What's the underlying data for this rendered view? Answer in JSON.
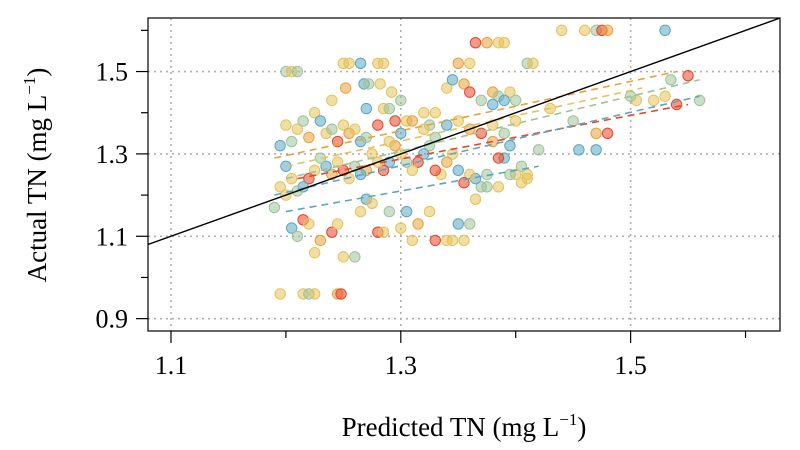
{
  "chart_data": {
    "type": "scatter",
    "title": "",
    "xlabel": "Predicted TN (mg L",
    "ylabel": "Actual TN (mg L",
    "unit_superscript": "−1",
    "unit_close": ")",
    "xlim": [
      1.08,
      1.63
    ],
    "ylim": [
      0.87,
      1.63
    ],
    "xticks": [
      1.1,
      1.3,
      1.5
    ],
    "xtick_labels": [
      "1.1",
      "1.3",
      "1.5"
    ],
    "xticks_minor": [
      1.2,
      1.4,
      1.6
    ],
    "yticks": [
      0.9,
      1.1,
      1.3,
      1.5
    ],
    "ytick_labels": [
      "0.9",
      "1.1",
      "1.3",
      "1.5"
    ],
    "yticks_minor": [
      1.0,
      1.2,
      1.4,
      1.6
    ],
    "grid": true,
    "legend": "none",
    "colors": {
      "blue": "#5aa7c4",
      "sage": "#9fc29a",
      "yellow": "#e5c25a",
      "orange": "#e8a23a",
      "red": "#e8462a",
      "identity_line": "#000000",
      "grid": "#b0b0b0"
    },
    "identity_line": {
      "x": [
        1.08,
        1.63
      ],
      "y": [
        1.08,
        1.63
      ]
    },
    "fit_lines": [
      {
        "color": "orange",
        "x": [
          1.19,
          1.54
        ],
        "y": [
          1.29,
          1.5
        ]
      },
      {
        "color": "yellow",
        "x": [
          1.2,
          1.51
        ],
        "y": [
          1.27,
          1.46
        ]
      },
      {
        "color": "sage",
        "x": [
          1.2,
          1.56
        ],
        "y": [
          1.24,
          1.48
        ]
      },
      {
        "color": "red",
        "x": [
          1.21,
          1.55
        ],
        "y": [
          1.24,
          1.42
        ]
      },
      {
        "color": "blue",
        "x": [
          1.19,
          1.56
        ],
        "y": [
          1.2,
          1.44
        ]
      },
      {
        "color": "blue",
        "x": [
          1.2,
          1.42
        ],
        "y": [
          1.16,
          1.27
        ]
      }
    ],
    "points": [
      {
        "x": 1.2,
        "y": 1.5,
        "c": "sage"
      },
      {
        "x": 1.205,
        "y": 1.5,
        "c": "yellow"
      },
      {
        "x": 1.21,
        "y": 1.5,
        "c": "sage"
      },
      {
        "x": 1.24,
        "y": 1.43,
        "c": "yellow"
      },
      {
        "x": 1.25,
        "y": 1.52,
        "c": "yellow"
      },
      {
        "x": 1.252,
        "y": 1.46,
        "c": "orange"
      },
      {
        "x": 1.255,
        "y": 1.52,
        "c": "yellow"
      },
      {
        "x": 1.265,
        "y": 1.52,
        "c": "blue"
      },
      {
        "x": 1.268,
        "y": 1.47,
        "c": "blue"
      },
      {
        "x": 1.272,
        "y": 1.47,
        "c": "sage"
      },
      {
        "x": 1.28,
        "y": 1.52,
        "c": "yellow"
      },
      {
        "x": 1.285,
        "y": 1.52,
        "c": "yellow"
      },
      {
        "x": 1.282,
        "y": 1.47,
        "c": "yellow"
      },
      {
        "x": 1.27,
        "y": 1.41,
        "c": "blue"
      },
      {
        "x": 1.285,
        "y": 1.41,
        "c": "yellow"
      },
      {
        "x": 1.29,
        "y": 1.41,
        "c": "sage"
      },
      {
        "x": 1.292,
        "y": 1.45,
        "c": "yellow"
      },
      {
        "x": 1.3,
        "y": 1.43,
        "c": "sage"
      },
      {
        "x": 1.295,
        "y": 1.38,
        "c": "red"
      },
      {
        "x": 1.305,
        "y": 1.38,
        "c": "yellow"
      },
      {
        "x": 1.32,
        "y": 1.4,
        "c": "yellow"
      },
      {
        "x": 1.33,
        "y": 1.4,
        "c": "yellow"
      },
      {
        "x": 1.325,
        "y": 1.37,
        "c": "sage"
      },
      {
        "x": 1.34,
        "y": 1.46,
        "c": "yellow"
      },
      {
        "x": 1.345,
        "y": 1.48,
        "c": "blue"
      },
      {
        "x": 1.35,
        "y": 1.52,
        "c": "orange"
      },
      {
        "x": 1.36,
        "y": 1.52,
        "c": "yellow"
      },
      {
        "x": 1.355,
        "y": 1.47,
        "c": "orange"
      },
      {
        "x": 1.36,
        "y": 1.45,
        "c": "red"
      },
      {
        "x": 1.365,
        "y": 1.57,
        "c": "red"
      },
      {
        "x": 1.375,
        "y": 1.57,
        "c": "orange"
      },
      {
        "x": 1.385,
        "y": 1.57,
        "c": "yellow"
      },
      {
        "x": 1.39,
        "y": 1.57,
        "c": "yellow"
      },
      {
        "x": 1.37,
        "y": 1.43,
        "c": "sage"
      },
      {
        "x": 1.38,
        "y": 1.45,
        "c": "orange"
      },
      {
        "x": 1.385,
        "y": 1.44,
        "c": "sage"
      },
      {
        "x": 1.395,
        "y": 1.45,
        "c": "yellow"
      },
      {
        "x": 1.38,
        "y": 1.42,
        "c": "blue"
      },
      {
        "x": 1.39,
        "y": 1.43,
        "c": "blue"
      },
      {
        "x": 1.4,
        "y": 1.43,
        "c": "sage"
      },
      {
        "x": 1.41,
        "y": 1.52,
        "c": "sage"
      },
      {
        "x": 1.415,
        "y": 1.52,
        "c": "yellow"
      },
      {
        "x": 1.44,
        "y": 1.6,
        "c": "yellow"
      },
      {
        "x": 1.46,
        "y": 1.6,
        "c": "yellow"
      },
      {
        "x": 1.47,
        "y": 1.6,
        "c": "sage"
      },
      {
        "x": 1.475,
        "y": 1.6,
        "c": "red"
      },
      {
        "x": 1.48,
        "y": 1.6,
        "c": "orange"
      },
      {
        "x": 1.53,
        "y": 1.6,
        "c": "blue"
      },
      {
        "x": 1.47,
        "y": 1.35,
        "c": "orange"
      },
      {
        "x": 1.48,
        "y": 1.35,
        "c": "red"
      },
      {
        "x": 1.53,
        "y": 1.44,
        "c": "yellow"
      },
      {
        "x": 1.55,
        "y": 1.49,
        "c": "red"
      },
      {
        "x": 1.54,
        "y": 1.42,
        "c": "red"
      },
      {
        "x": 1.56,
        "y": 1.43,
        "c": "sage"
      },
      {
        "x": 1.535,
        "y": 1.48,
        "c": "sage"
      },
      {
        "x": 1.52,
        "y": 1.43,
        "c": "yellow"
      },
      {
        "x": 1.505,
        "y": 1.43,
        "c": "yellow"
      },
      {
        "x": 1.5,
        "y": 1.44,
        "c": "sage"
      },
      {
        "x": 1.455,
        "y": 1.31,
        "c": "blue"
      },
      {
        "x": 1.47,
        "y": 1.31,
        "c": "blue"
      },
      {
        "x": 1.43,
        "y": 1.41,
        "c": "yellow"
      },
      {
        "x": 1.45,
        "y": 1.38,
        "c": "sage"
      },
      {
        "x": 1.42,
        "y": 1.31,
        "c": "sage"
      },
      {
        "x": 1.41,
        "y": 1.25,
        "c": "yellow"
      },
      {
        "x": 1.405,
        "y": 1.27,
        "c": "sage"
      },
      {
        "x": 1.4,
        "y": 1.25,
        "c": "yellow"
      },
      {
        "x": 1.395,
        "y": 1.32,
        "c": "blue"
      },
      {
        "x": 1.39,
        "y": 1.29,
        "c": "blue"
      },
      {
        "x": 1.385,
        "y": 1.29,
        "c": "red"
      },
      {
        "x": 1.38,
        "y": 1.33,
        "c": "orange"
      },
      {
        "x": 1.375,
        "y": 1.25,
        "c": "sage"
      },
      {
        "x": 1.37,
        "y": 1.22,
        "c": "sage"
      },
      {
        "x": 1.365,
        "y": 1.24,
        "c": "blue"
      },
      {
        "x": 1.36,
        "y": 1.25,
        "c": "yellow"
      },
      {
        "x": 1.355,
        "y": 1.23,
        "c": "red"
      },
      {
        "x": 1.35,
        "y": 1.26,
        "c": "blue"
      },
      {
        "x": 1.345,
        "y": 1.3,
        "c": "yellow"
      },
      {
        "x": 1.34,
        "y": 1.28,
        "c": "orange"
      },
      {
        "x": 1.335,
        "y": 1.25,
        "c": "yellow"
      },
      {
        "x": 1.33,
        "y": 1.26,
        "c": "red"
      },
      {
        "x": 1.325,
        "y": 1.32,
        "c": "sage"
      },
      {
        "x": 1.32,
        "y": 1.3,
        "c": "blue"
      },
      {
        "x": 1.315,
        "y": 1.28,
        "c": "red"
      },
      {
        "x": 1.31,
        "y": 1.26,
        "c": "yellow"
      },
      {
        "x": 1.305,
        "y": 1.28,
        "c": "sage"
      },
      {
        "x": 1.3,
        "y": 1.3,
        "c": "yellow"
      },
      {
        "x": 1.295,
        "y": 1.32,
        "c": "orange"
      },
      {
        "x": 1.29,
        "y": 1.28,
        "c": "blue"
      },
      {
        "x": 1.285,
        "y": 1.26,
        "c": "red"
      },
      {
        "x": 1.28,
        "y": 1.28,
        "c": "yellow"
      },
      {
        "x": 1.275,
        "y": 1.3,
        "c": "yellow"
      },
      {
        "x": 1.27,
        "y": 1.26,
        "c": "orange"
      },
      {
        "x": 1.265,
        "y": 1.25,
        "c": "blue"
      },
      {
        "x": 1.26,
        "y": 1.27,
        "c": "sage"
      },
      {
        "x": 1.255,
        "y": 1.24,
        "c": "yellow"
      },
      {
        "x": 1.25,
        "y": 1.26,
        "c": "red"
      },
      {
        "x": 1.245,
        "y": 1.28,
        "c": "yellow"
      },
      {
        "x": 1.24,
        "y": 1.25,
        "c": "orange"
      },
      {
        "x": 1.235,
        "y": 1.27,
        "c": "blue"
      },
      {
        "x": 1.23,
        "y": 1.29,
        "c": "sage"
      },
      {
        "x": 1.225,
        "y": 1.26,
        "c": "yellow"
      },
      {
        "x": 1.22,
        "y": 1.24,
        "c": "red"
      },
      {
        "x": 1.215,
        "y": 1.22,
        "c": "blue"
      },
      {
        "x": 1.21,
        "y": 1.21,
        "c": "sage"
      },
      {
        "x": 1.205,
        "y": 1.24,
        "c": "yellow"
      },
      {
        "x": 1.2,
        "y": 1.27,
        "c": "blue"
      },
      {
        "x": 1.195,
        "y": 1.22,
        "c": "yellow"
      },
      {
        "x": 1.19,
        "y": 1.17,
        "c": "sage"
      },
      {
        "x": 1.2,
        "y": 1.2,
        "c": "yellow"
      },
      {
        "x": 1.2,
        "y": 1.37,
        "c": "yellow"
      },
      {
        "x": 1.195,
        "y": 1.32,
        "c": "blue"
      },
      {
        "x": 1.205,
        "y": 1.33,
        "c": "sage"
      },
      {
        "x": 1.21,
        "y": 1.36,
        "c": "yellow"
      },
      {
        "x": 1.215,
        "y": 1.38,
        "c": "sage"
      },
      {
        "x": 1.22,
        "y": 1.34,
        "c": "orange"
      },
      {
        "x": 1.225,
        "y": 1.4,
        "c": "yellow"
      },
      {
        "x": 1.23,
        "y": 1.38,
        "c": "blue"
      },
      {
        "x": 1.235,
        "y": 1.35,
        "c": "yellow"
      },
      {
        "x": 1.24,
        "y": 1.36,
        "c": "sage"
      },
      {
        "x": 1.245,
        "y": 1.33,
        "c": "red"
      },
      {
        "x": 1.25,
        "y": 1.37,
        "c": "yellow"
      },
      {
        "x": 1.255,
        "y": 1.35,
        "c": "orange"
      },
      {
        "x": 1.26,
        "y": 1.36,
        "c": "yellow"
      },
      {
        "x": 1.265,
        "y": 1.33,
        "c": "blue"
      },
      {
        "x": 1.27,
        "y": 1.34,
        "c": "sage"
      },
      {
        "x": 1.28,
        "y": 1.37,
        "c": "red"
      },
      {
        "x": 1.29,
        "y": 1.33,
        "c": "yellow"
      },
      {
        "x": 1.3,
        "y": 1.35,
        "c": "blue"
      },
      {
        "x": 1.31,
        "y": 1.38,
        "c": "orange"
      },
      {
        "x": 1.32,
        "y": 1.36,
        "c": "yellow"
      },
      {
        "x": 1.33,
        "y": 1.34,
        "c": "sage"
      },
      {
        "x": 1.34,
        "y": 1.37,
        "c": "blue"
      },
      {
        "x": 1.35,
        "y": 1.38,
        "c": "yellow"
      },
      {
        "x": 1.36,
        "y": 1.36,
        "c": "orange"
      },
      {
        "x": 1.37,
        "y": 1.35,
        "c": "red"
      },
      {
        "x": 1.38,
        "y": 1.37,
        "c": "yellow"
      },
      {
        "x": 1.39,
        "y": 1.35,
        "c": "sage"
      },
      {
        "x": 1.4,
        "y": 1.38,
        "c": "yellow"
      },
      {
        "x": 1.205,
        "y": 1.12,
        "c": "blue"
      },
      {
        "x": 1.21,
        "y": 1.1,
        "c": "sage"
      },
      {
        "x": 1.215,
        "y": 1.14,
        "c": "red"
      },
      {
        "x": 1.22,
        "y": 1.13,
        "c": "yellow"
      },
      {
        "x": 1.225,
        "y": 1.06,
        "c": "yellow"
      },
      {
        "x": 1.23,
        "y": 1.09,
        "c": "orange"
      },
      {
        "x": 1.24,
        "y": 1.11,
        "c": "red"
      },
      {
        "x": 1.245,
        "y": 1.13,
        "c": "yellow"
      },
      {
        "x": 1.25,
        "y": 1.05,
        "c": "yellow"
      },
      {
        "x": 1.26,
        "y": 1.05,
        "c": "sage"
      },
      {
        "x": 1.265,
        "y": 1.16,
        "c": "yellow"
      },
      {
        "x": 1.27,
        "y": 1.19,
        "c": "blue"
      },
      {
        "x": 1.275,
        "y": 1.18,
        "c": "yellow"
      },
      {
        "x": 1.28,
        "y": 1.11,
        "c": "red"
      },
      {
        "x": 1.285,
        "y": 1.11,
        "c": "yellow"
      },
      {
        "x": 1.29,
        "y": 1.16,
        "c": "sage"
      },
      {
        "x": 1.3,
        "y": 1.12,
        "c": "yellow"
      },
      {
        "x": 1.305,
        "y": 1.16,
        "c": "blue"
      },
      {
        "x": 1.31,
        "y": 1.09,
        "c": "yellow"
      },
      {
        "x": 1.315,
        "y": 1.13,
        "c": "orange"
      },
      {
        "x": 1.325,
        "y": 1.16,
        "c": "yellow"
      },
      {
        "x": 1.33,
        "y": 1.09,
        "c": "red"
      },
      {
        "x": 1.34,
        "y": 1.09,
        "c": "yellow"
      },
      {
        "x": 1.345,
        "y": 1.09,
        "c": "yellow"
      },
      {
        "x": 1.35,
        "y": 1.13,
        "c": "blue"
      },
      {
        "x": 1.355,
        "y": 1.09,
        "c": "yellow"
      },
      {
        "x": 1.36,
        "y": 1.13,
        "c": "sage"
      },
      {
        "x": 1.365,
        "y": 1.19,
        "c": "yellow"
      },
      {
        "x": 1.375,
        "y": 1.22,
        "c": "sage"
      },
      {
        "x": 1.385,
        "y": 1.22,
        "c": "yellow"
      },
      {
        "x": 1.395,
        "y": 1.25,
        "c": "sage"
      },
      {
        "x": 1.405,
        "y": 1.23,
        "c": "yellow"
      },
      {
        "x": 1.41,
        "y": 1.24,
        "c": "yellow"
      },
      {
        "x": 1.195,
        "y": 0.96,
        "c": "yellow"
      },
      {
        "x": 1.215,
        "y": 0.96,
        "c": "yellow"
      },
      {
        "x": 1.22,
        "y": 0.96,
        "c": "sage"
      },
      {
        "x": 1.225,
        "y": 0.96,
        "c": "yellow"
      },
      {
        "x": 1.245,
        "y": 0.96,
        "c": "orange"
      },
      {
        "x": 1.248,
        "y": 0.96,
        "c": "red"
      }
    ]
  }
}
